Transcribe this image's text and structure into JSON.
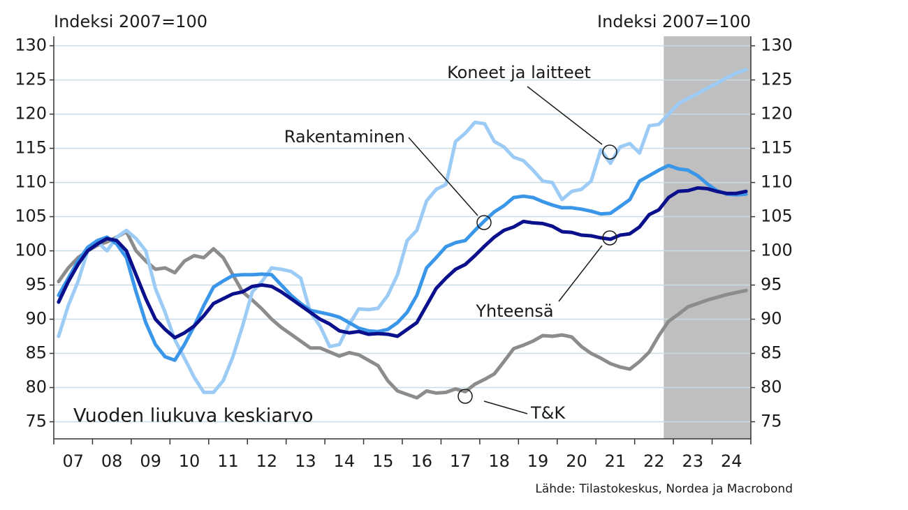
{
  "chart_data": {
    "type": "line",
    "y_label": "Indeksi 2007=100",
    "y2_label": "Indeksi 2007=100",
    "note": "Vuoden liukuva keskiarvo",
    "source": "Lähde: Tilastokeskus, Nordea ja Macrobond",
    "x": [
      2007.125,
      2007.375,
      2007.625,
      2007.875,
      2008.125,
      2008.375,
      2008.625,
      2008.875,
      2009.125,
      2009.375,
      2009.625,
      2009.875,
      2010.125,
      2010.375,
      2010.625,
      2010.875,
      2011.125,
      2011.375,
      2011.625,
      2011.875,
      2012.125,
      2012.375,
      2012.625,
      2012.875,
      2013.125,
      2013.375,
      2013.625,
      2013.875,
      2014.125,
      2014.375,
      2014.625,
      2014.875,
      2015.125,
      2015.375,
      2015.625,
      2015.875,
      2016.125,
      2016.375,
      2016.625,
      2016.875,
      2017.125,
      2017.375,
      2017.625,
      2017.875,
      2018.125,
      2018.375,
      2018.625,
      2018.875,
      2019.125,
      2019.375,
      2019.625,
      2019.875,
      2020.125,
      2020.375,
      2020.625,
      2020.875,
      2021.125,
      2021.375,
      2021.625,
      2021.875,
      2022.125,
      2022.375,
      2022.625,
      2022.875,
      2023.125,
      2023.375,
      2023.625,
      2023.875,
      2024.125,
      2024.375,
      2024.625,
      2024.875
    ],
    "series": [
      {
        "name": "T&K",
        "color": "#8c8c8c",
        "values": [
          95.5,
          97.5,
          99,
          100,
          100.8,
          101.3,
          102,
          102.8,
          100,
          98.5,
          97.3,
          97.5,
          96.8,
          98.5,
          99.3,
          99,
          100.3,
          99,
          96.5,
          94,
          92.8,
          91.5,
          90,
          88.8,
          87.8,
          86.8,
          85.8,
          85.8,
          85.2,
          84.6,
          85.1,
          84.8,
          84,
          83.2,
          81,
          79.5,
          79,
          78.5,
          79.5,
          79.2,
          79.3,
          79.8,
          79.4,
          80.5,
          81.2,
          82,
          83.8,
          85.7,
          86.2,
          86.8,
          87.6,
          87.5,
          87.7,
          87.4,
          86,
          85,
          84.3,
          83.5,
          83,
          82.7,
          83.8,
          85.2,
          87.6,
          89.7,
          90.7,
          91.8,
          92.3,
          92.8,
          93.2,
          93.6,
          93.9,
          94.2
        ]
      },
      {
        "name": "Koneet ja laitteet",
        "color": "#9ccbf5",
        "values": [
          87.5,
          92,
          95.5,
          100,
          101.3,
          100,
          102,
          103,
          101.8,
          100,
          94.5,
          91,
          87,
          84.3,
          81.5,
          79.3,
          79.3,
          81,
          84.5,
          89,
          94,
          95.5,
          97.5,
          97.3,
          97,
          96,
          91,
          89,
          86,
          86.3,
          89.2,
          91.5,
          91.4,
          91.6,
          93.5,
          96.5,
          101.5,
          103,
          107.3,
          109,
          109.7,
          116,
          117.2,
          118.8,
          118.6,
          116,
          115.2,
          113.7,
          113.2,
          111.8,
          110.2,
          110,
          107.5,
          108.7,
          109,
          110.2,
          114.8,
          112.8,
          115.2,
          115.7,
          114.3,
          118.3,
          118.5,
          120,
          121.5,
          122.3,
          123,
          123.8,
          124.5,
          125.3,
          126,
          126.5
        ]
      },
      {
        "name": "Rakentaminen",
        "color": "#3a96e8",
        "values": [
          93.5,
          96,
          98.5,
          100.5,
          101.5,
          102,
          101,
          99,
          94,
          89.5,
          86.3,
          84.5,
          84,
          86.3,
          89,
          92,
          94.7,
          95.6,
          96.4,
          96.5,
          96.5,
          96.6,
          96.5,
          95,
          93.5,
          92.3,
          91.3,
          91,
          90.7,
          90.3,
          89.5,
          88.7,
          88.3,
          88.2,
          88.5,
          89.5,
          91,
          93.5,
          97.5,
          99,
          100.6,
          101.2,
          101.5,
          103,
          104.4,
          105.7,
          106.6,
          107.8,
          108,
          107.8,
          107.2,
          106.7,
          106.3,
          106.3,
          106.1,
          105.8,
          105.4,
          105.5,
          106.5,
          107.5,
          110.2,
          111,
          111.8,
          112.5,
          112,
          111.8,
          111,
          109.8,
          108.8,
          108.3,
          108.2,
          108.3
        ]
      },
      {
        "name": "Yhteensä",
        "color": "#0a0f8c",
        "values": [
          92.5,
          95.5,
          98,
          100,
          101,
          101.8,
          101.5,
          100,
          96.5,
          93,
          90,
          88.5,
          87.3,
          88,
          89,
          90.5,
          92.3,
          93,
          93.7,
          94,
          94.8,
          95,
          94.8,
          94,
          93,
          92,
          91,
          90,
          89.3,
          88.3,
          88,
          88.2,
          87.8,
          87.9,
          87.8,
          87.5,
          88.5,
          89.5,
          92,
          94.5,
          96,
          97.3,
          98,
          99.3,
          100.7,
          102,
          103,
          103.5,
          104.3,
          104.1,
          104,
          103.6,
          102.8,
          102.7,
          102.3,
          102.2,
          101.9,
          101.7,
          102.3,
          102.5,
          103.5,
          105.3,
          106,
          107.8,
          108.7,
          108.8,
          109.2,
          109.1,
          108.7,
          108.4,
          108.4,
          108.7
        ]
      }
    ],
    "xlim": [
      2007,
      2025
    ],
    "xticks": [
      {
        "value": 2007.5,
        "label": "07"
      },
      {
        "value": 2008.5,
        "label": "08"
      },
      {
        "value": 2009.5,
        "label": "09"
      },
      {
        "value": 2010.5,
        "label": "10"
      },
      {
        "value": 2011.5,
        "label": "11"
      },
      {
        "value": 2012.5,
        "label": "12"
      },
      {
        "value": 2013.5,
        "label": "13"
      },
      {
        "value": 2014.5,
        "label": "14"
      },
      {
        "value": 2015.5,
        "label": "15"
      },
      {
        "value": 2016.5,
        "label": "16"
      },
      {
        "value": 2017.5,
        "label": "17"
      },
      {
        "value": 2018.5,
        "label": "18"
      },
      {
        "value": 2019.5,
        "label": "19"
      },
      {
        "value": 2020.5,
        "label": "20"
      },
      {
        "value": 2021.5,
        "label": "21"
      },
      {
        "value": 2022.5,
        "label": "22"
      },
      {
        "value": 2023.5,
        "label": "23"
      },
      {
        "value": 2024.5,
        "label": "24"
      }
    ],
    "xtick_marks": [
      2007,
      2008,
      2009,
      2010,
      2011,
      2012,
      2013,
      2014,
      2015,
      2016,
      2017,
      2018,
      2019,
      2020,
      2021,
      2022,
      2023,
      2024,
      2025
    ],
    "ylim": [
      72.5,
      132
    ],
    "yticks": [
      75,
      80,
      85,
      90,
      95,
      100,
      105,
      110,
      115,
      120,
      125,
      130
    ],
    "y2lim": [
      72.5,
      132
    ],
    "y2ticks": [
      75,
      80,
      85,
      90,
      95,
      100,
      105,
      110,
      115,
      120,
      125,
      130
    ],
    "grid": true,
    "shaded_region": {
      "from": 2022.75,
      "to": 2025,
      "color": "#bfbfbf"
    }
  }
}
